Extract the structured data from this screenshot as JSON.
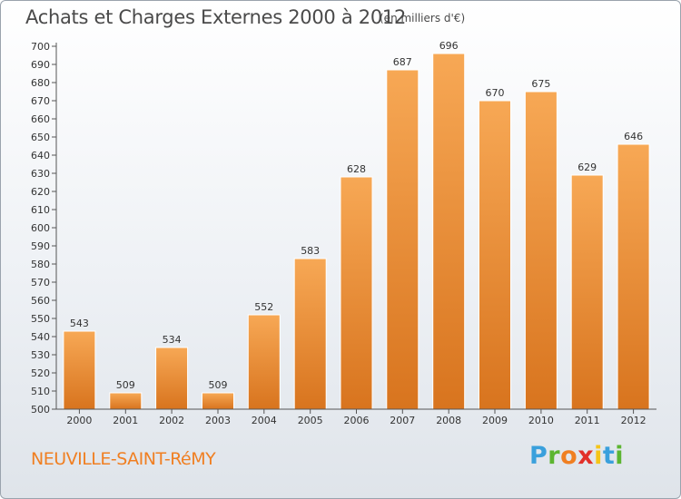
{
  "header": {
    "title": "Achats et Charges Externes 2000 à 2012",
    "unit_note": "(en milliers d'€)"
  },
  "footer": {
    "commune": "NEUVILLE-SAINT-RéMY",
    "logo_letters": [
      "P",
      "r",
      "o",
      "x",
      "i",
      "t",
      "i"
    ],
    "logo_colors": [
      "#3aa0dc",
      "#5cb531",
      "#f07f22",
      "#e2302a",
      "#f5c518",
      "#3aa0dc",
      "#5cb531"
    ]
  },
  "colors": {
    "bar_top": "#f7a855",
    "bar_bottom": "#d8741e",
    "axis": "#555555",
    "label": "#333333"
  },
  "chart_data": {
    "type": "bar",
    "categories": [
      "2000",
      "2001",
      "2002",
      "2003",
      "2004",
      "2005",
      "2006",
      "2007",
      "2008",
      "2009",
      "2010",
      "2011",
      "2012"
    ],
    "values": [
      543,
      509,
      534,
      509,
      552,
      583,
      628,
      687,
      696,
      670,
      675,
      629,
      646
    ],
    "ylim": [
      500,
      700
    ],
    "yticks": [
      500,
      510,
      520,
      530,
      540,
      550,
      560,
      570,
      580,
      590,
      600,
      610,
      620,
      630,
      640,
      650,
      660,
      670,
      680,
      690,
      700
    ],
    "grid": false,
    "data_labels": true
  }
}
